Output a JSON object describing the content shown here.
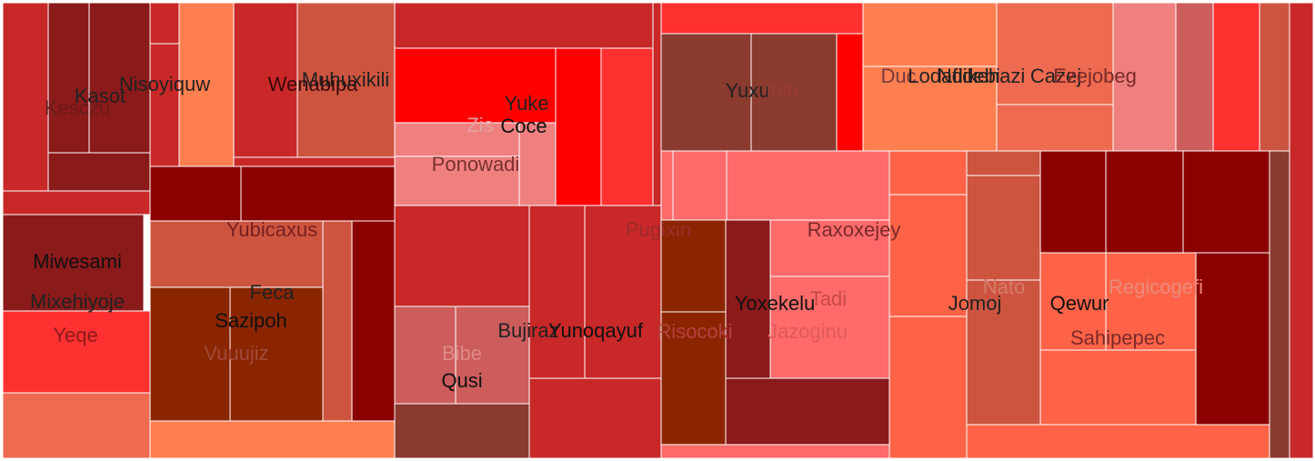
{
  "chart_data": {
    "type": "treemap",
    "title": "",
    "colors": {
      "very_dark_red": "#8B0000",
      "dark_red": "#8B1A1A",
      "medium_red": "#C82828",
      "red": "#FF0000",
      "bright_red": "#FF3030",
      "brown_red": "#8B3A2F",
      "rust": "#8B2500",
      "coral": "#FF7F50",
      "tomato": "#FF6347",
      "light_coral": "#F08080",
      "salmon_red": "#FF6A6A",
      "indian_red": "#CD5C5C",
      "terracotta": "#CD5540",
      "soft_red": "#EE6A50"
    },
    "labels": [
      {
        "text": "Kesczu",
        "color": "#6b1a1a"
      },
      {
        "text": "Kasot",
        "color": "#222222"
      },
      {
        "text": "Nisoyiquw",
        "color": "#222222"
      },
      {
        "text": "Wenabipa",
        "color": "#3a0a0a"
      },
      {
        "text": "Muhuxikili",
        "color": "#222222"
      },
      {
        "text": "Yubicaxus",
        "color": "#7a1f1f"
      },
      {
        "text": "Miwesami",
        "color": "#111111"
      },
      {
        "text": "Mixehiyoje",
        "color": "#222222"
      },
      {
        "text": "Yeqe",
        "color": "#8b1a1a"
      },
      {
        "text": "Feca",
        "color": "#222222"
      },
      {
        "text": "Sazipoh",
        "color": "#111111"
      },
      {
        "text": "Vuuujiz",
        "color": "#a04a3a"
      },
      {
        "text": "Zis",
        "color": "#e0a0a0"
      },
      {
        "text": "Yuke",
        "color": "#222222"
      },
      {
        "text": "Coce",
        "color": "#111111"
      },
      {
        "text": "Ponowadi",
        "color": "#7a3030"
      },
      {
        "text": "Pugixin",
        "color": "#a02a2a"
      },
      {
        "text": "Bujiraz",
        "color": "#222222"
      },
      {
        "text": "Yunoqayuf",
        "color": "#111111"
      },
      {
        "text": "Bibe",
        "color": "#e08a8a"
      },
      {
        "text": "Qusi",
        "color": "#111111"
      },
      {
        "text": "Yuxu",
        "color": "#222222"
      },
      {
        "text": "ihih",
        "color": "#9a3a3a"
      },
      {
        "text": "Raxoxejey",
        "color": "#7a2a2a"
      },
      {
        "text": "Yoxekelu",
        "color": "#111111"
      },
      {
        "text": "Tadi",
        "color": "#c84a4a"
      },
      {
        "text": "Risocoki",
        "color": "#b84040"
      },
      {
        "text": "Jazoginu",
        "color": "#e05a5a"
      },
      {
        "text": "Duc",
        "color": "#7a3a3a"
      },
      {
        "text": "Lodafidebi",
        "color": "#222222"
      },
      {
        "text": "Ndikehazi",
        "color": "#222222"
      },
      {
        "text": "Cazej",
        "color": "#222222"
      },
      {
        "text": "Ezejobeg",
        "color": "#7a2a2a"
      },
      {
        "text": "Jomoj",
        "color": "#222222"
      },
      {
        "text": "Nato",
        "color": "#d87a6a"
      },
      {
        "text": "Qewur",
        "color": "#111111"
      },
      {
        "text": "Regicogefi",
        "color": "#e88a7a"
      },
      {
        "text": "Sahipepec",
        "color": "#7a2a2a"
      }
    ]
  }
}
